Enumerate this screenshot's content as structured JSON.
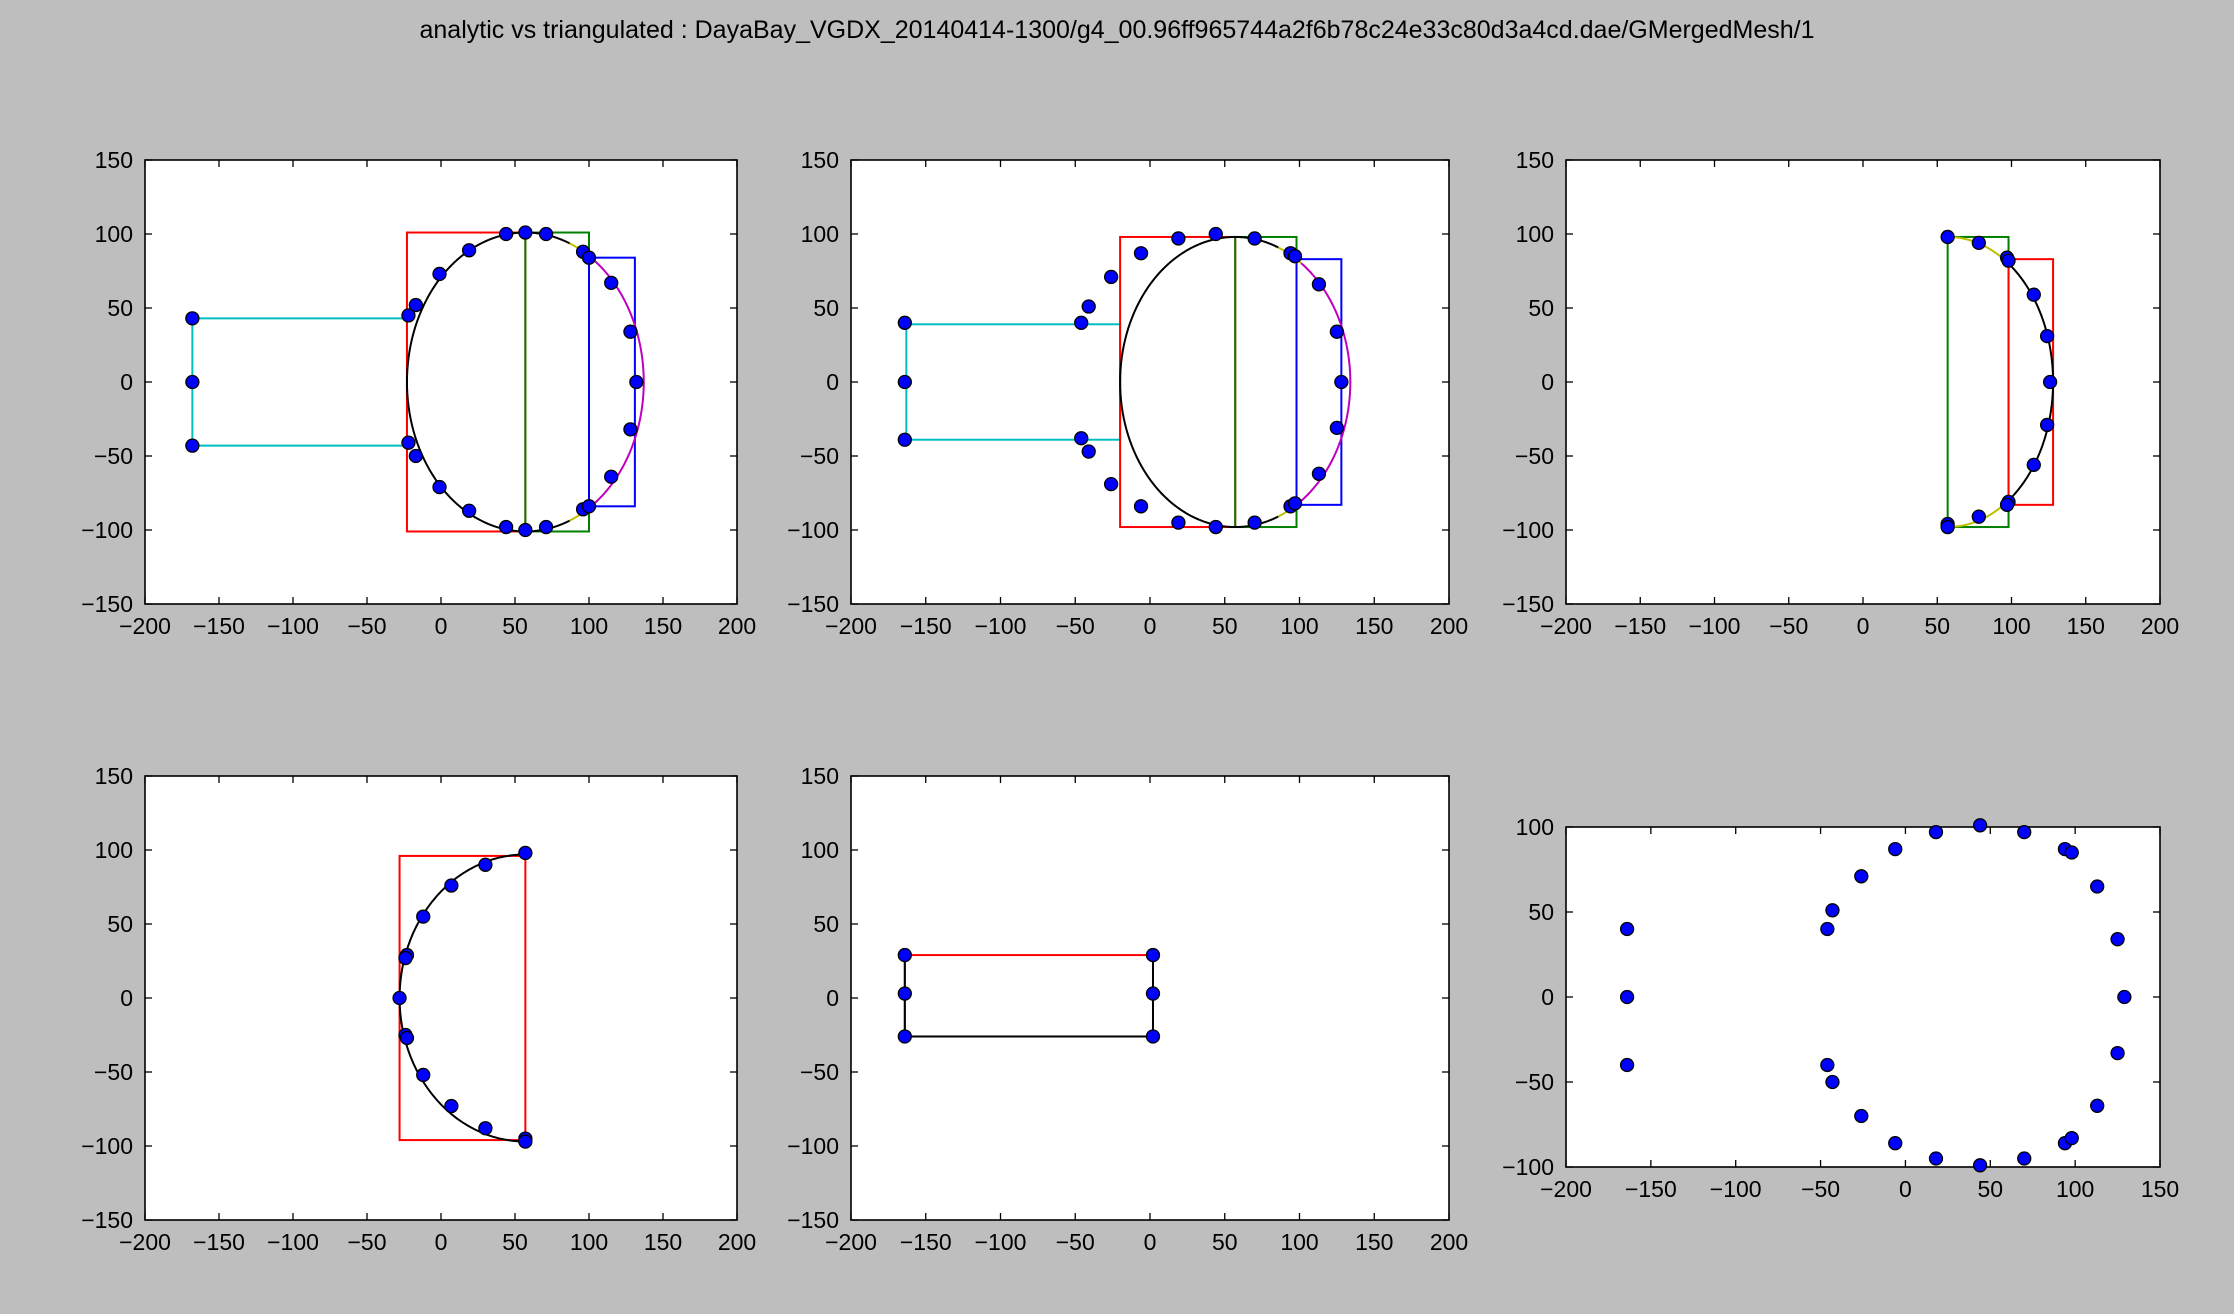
{
  "figure": {
    "title": "analytic vs triangulated : DayaBay_VGDX_20140414-1300/g4_00.96ff965744a2f6b78c24e33c80d3a4cd.dae/GMergedMesh/1"
  },
  "chart_data": [
    {
      "type": "scatter",
      "panel": "top-left",
      "xlim": [
        -200,
        200
      ],
      "ylim": [
        -150,
        150
      ],
      "xticks": [
        -200,
        -150,
        -100,
        -50,
        0,
        50,
        100,
        150,
        200
      ],
      "yticks": [
        -150,
        -100,
        -50,
        0,
        50,
        100,
        150
      ],
      "grid": false,
      "rects": [
        {
          "x0": -168,
          "y0": -43,
          "x1": -23,
          "y1": 43,
          "color": "#00bfbf"
        },
        {
          "x0": -23,
          "y0": -101,
          "x1": 57,
          "y1": 101,
          "color": "#ff0000"
        },
        {
          "x0": 57,
          "y0": -101,
          "x1": 100,
          "y1": 101,
          "color": "#008000"
        },
        {
          "x0": 100,
          "y0": -84,
          "x1": 131,
          "y1": 84,
          "color": "#0000ff"
        }
      ],
      "arcs": [
        {
          "cx": 57,
          "cy": 0,
          "r": 80,
          "ry": 101,
          "from": 108,
          "to": 252,
          "color": "#000000"
        },
        {
          "cx": 57,
          "cy": 0,
          "r": 80,
          "ry": 101,
          "from": -108,
          "to": -68,
          "color": "#000000"
        },
        {
          "cx": 57,
          "cy": 0,
          "r": 80,
          "ry": 101,
          "from": 68,
          "to": 108,
          "color": "#000000"
        },
        {
          "cx": 57,
          "cy": 0,
          "r": 80,
          "ry": 101,
          "from": 55,
          "to": 68,
          "color": "#bfbf00"
        },
        {
          "cx": 57,
          "cy": 0,
          "r": 80,
          "ry": 101,
          "from": -68,
          "to": -55,
          "color": "#bfbf00"
        },
        {
          "cx": 57,
          "cy": 0,
          "r": 80,
          "ry": 101,
          "from": -55,
          "to": 55,
          "color": "#bf00bf"
        }
      ],
      "points": [
        [
          -168,
          43
        ],
        [
          -168,
          0
        ],
        [
          -168,
          -43
        ],
        [
          -22,
          45
        ],
        [
          -17,
          52
        ],
        [
          -1,
          73
        ],
        [
          19,
          89
        ],
        [
          44,
          100
        ],
        [
          57,
          101
        ],
        [
          71,
          100
        ],
        [
          96,
          88
        ],
        [
          100,
          84
        ],
        [
          115,
          67
        ],
        [
          128,
          34
        ],
        [
          132,
          0
        ],
        [
          -22,
          -41
        ],
        [
          -17,
          -50
        ],
        [
          -1,
          -71
        ],
        [
          19,
          -87
        ],
        [
          44,
          -98
        ],
        [
          57,
          -100
        ],
        [
          71,
          -98
        ],
        [
          96,
          -86
        ],
        [
          100,
          -84
        ],
        [
          115,
          -64
        ],
        [
          128,
          -32
        ]
      ]
    },
    {
      "type": "scatter",
      "panel": "top-middle",
      "xlim": [
        -200,
        200
      ],
      "ylim": [
        -150,
        150
      ],
      "xticks": [
        -200,
        -150,
        -100,
        -50,
        0,
        50,
        100,
        150,
        200
      ],
      "yticks": [
        -150,
        -100,
        -50,
        0,
        50,
        100,
        150
      ],
      "grid": false,
      "rects": [
        {
          "x0": -163,
          "y0": -39,
          "x1": -20,
          "y1": 39,
          "color": "#00bfbf"
        },
        {
          "x0": -20,
          "y0": -98,
          "x1": 57,
          "y1": 98,
          "color": "#ff0000"
        },
        {
          "x0": 57,
          "y0": -98,
          "x1": 98,
          "y1": 98,
          "color": "#008000"
        },
        {
          "x0": 98,
          "y0": -83,
          "x1": 128,
          "y1": 83,
          "color": "#0000ff"
        }
      ],
      "arcs": [
        {
          "cx": 57,
          "cy": 0,
          "r": 77,
          "ry": 98,
          "from": 108,
          "to": 252,
          "color": "#000000"
        },
        {
          "cx": 57,
          "cy": 0,
          "r": 77,
          "ry": 98,
          "from": -108,
          "to": -68,
          "color": "#000000"
        },
        {
          "cx": 57,
          "cy": 0,
          "r": 77,
          "ry": 98,
          "from": 68,
          "to": 108,
          "color": "#000000"
        },
        {
          "cx": 57,
          "cy": 0,
          "r": 77,
          "ry": 98,
          "from": 55,
          "to": 68,
          "color": "#bfbf00"
        },
        {
          "cx": 57,
          "cy": 0,
          "r": 77,
          "ry": 98,
          "from": -68,
          "to": -55,
          "color": "#bfbf00"
        },
        {
          "cx": 57,
          "cy": 0,
          "r": 77,
          "ry": 98,
          "from": -55,
          "to": 55,
          "color": "#bf00bf"
        }
      ],
      "points": [
        [
          -164,
          40
        ],
        [
          -164,
          0
        ],
        [
          -164,
          -39
        ],
        [
          -46,
          40
        ],
        [
          -41,
          51
        ],
        [
          -26,
          71
        ],
        [
          -6,
          87
        ],
        [
          19,
          97
        ],
        [
          44,
          100
        ],
        [
          70,
          97
        ],
        [
          94,
          87
        ],
        [
          97,
          85
        ],
        [
          113,
          66
        ],
        [
          125,
          34
        ],
        [
          128,
          0
        ],
        [
          -46,
          -38
        ],
        [
          -41,
          -47
        ],
        [
          -26,
          -69
        ],
        [
          -6,
          -84
        ],
        [
          19,
          -95
        ],
        [
          44,
          -98
        ],
        [
          70,
          -95
        ],
        [
          94,
          -84
        ],
        [
          97,
          -82
        ],
        [
          113,
          -62
        ],
        [
          125,
          -31
        ]
      ]
    },
    {
      "type": "scatter",
      "panel": "top-right",
      "xlim": [
        -200,
        200
      ],
      "ylim": [
        -150,
        150
      ],
      "xticks": [
        -200,
        -150,
        -100,
        -50,
        0,
        50,
        100,
        150,
        200
      ],
      "yticks": [
        -150,
        -100,
        -50,
        0,
        50,
        100,
        150
      ],
      "grid": false,
      "rects": [
        {
          "x0": 57,
          "y0": -98,
          "x1": 98,
          "y1": 98,
          "color": "#008000"
        },
        {
          "x0": 98,
          "y0": -83,
          "x1": 128,
          "y1": 83,
          "color": "#ff0000"
        }
      ],
      "arcs": [
        {
          "cx": 57,
          "cy": 0,
          "r": 71,
          "ry": 98,
          "from": 55,
          "to": 90,
          "color": "#bfbf00"
        },
        {
          "cx": 57,
          "cy": 0,
          "r": 71,
          "ry": 98,
          "from": -90,
          "to": -55,
          "color": "#bfbf00"
        },
        {
          "cx": 57,
          "cy": 0,
          "r": 71,
          "ry": 98,
          "from": -55,
          "to": 55,
          "color": "#000000"
        }
      ],
      "points": [
        [
          57,
          98
        ],
        [
          57,
          -96
        ],
        [
          57,
          -98
        ],
        [
          78,
          94
        ],
        [
          97,
          84
        ],
        [
          98,
          82
        ],
        [
          115,
          59
        ],
        [
          124,
          31
        ],
        [
          126,
          0
        ],
        [
          124,
          -29
        ],
        [
          115,
          -56
        ],
        [
          98,
          -81
        ],
        [
          97,
          -83
        ],
        [
          78,
          -91
        ]
      ]
    },
    {
      "type": "scatter",
      "panel": "bottom-left",
      "xlim": [
        -200,
        200
      ],
      "ylim": [
        -150,
        150
      ],
      "xticks": [
        -200,
        -150,
        -100,
        -50,
        0,
        50,
        100,
        150,
        200
      ],
      "yticks": [
        -150,
        -100,
        -50,
        0,
        50,
        100,
        150
      ],
      "grid": false,
      "rects": [
        {
          "x0": -28,
          "y0": -96,
          "x1": 57,
          "y1": 96,
          "color": "#ff0000"
        }
      ],
      "arcs": [
        {
          "cx": 57,
          "cy": 0,
          "r": 85,
          "ry": 97,
          "from": 90,
          "to": 270,
          "color": "#000000"
        }
      ],
      "points": [
        [
          57,
          98
        ],
        [
          30,
          90
        ],
        [
          7,
          76
        ],
        [
          -12,
          55
        ],
        [
          -23,
          29
        ],
        [
          -24,
          27
        ],
        [
          -28,
          0
        ],
        [
          -24,
          -25
        ],
        [
          -23,
          -27
        ],
        [
          -12,
          -52
        ],
        [
          7,
          -73
        ],
        [
          30,
          -88
        ],
        [
          57,
          -95
        ],
        [
          57,
          -97
        ]
      ]
    },
    {
      "type": "scatter",
      "panel": "bottom-middle",
      "xlim": [
        -200,
        200
      ],
      "ylim": [
        -150,
        150
      ],
      "xticks": [
        -200,
        -150,
        -100,
        -50,
        0,
        50,
        100,
        150,
        200
      ],
      "yticks": [
        -150,
        -100,
        -50,
        0,
        50,
        100,
        150
      ],
      "grid": false,
      "rects": [
        {
          "x0": -164,
          "y0": -26,
          "x1": 2,
          "y1": 29,
          "color": "#ff0000"
        }
      ],
      "segments": [
        {
          "x0": -164,
          "y0": -26,
          "x1": 2,
          "y1": -26,
          "color": "#000000"
        },
        {
          "x0": -164,
          "y0": 29,
          "x1": -164,
          "y1": -26,
          "color": "#000000"
        },
        {
          "x0": 2,
          "y0": 29,
          "x1": 2,
          "y1": -26,
          "color": "#000000"
        }
      ],
      "points": [
        [
          -164,
          29
        ],
        [
          -164,
          3
        ],
        [
          -164,
          -26
        ],
        [
          2,
          29
        ],
        [
          2,
          3
        ],
        [
          2,
          -26
        ]
      ]
    },
    {
      "type": "scatter",
      "panel": "bottom-right",
      "xlim": [
        -200,
        150
      ],
      "ylim": [
        -100,
        100
      ],
      "xticks": [
        -200,
        -150,
        -100,
        -50,
        0,
        50,
        100,
        150
      ],
      "yticks": [
        -100,
        -50,
        0,
        50,
        100
      ],
      "grid": false,
      "points": [
        [
          -164,
          40
        ],
        [
          -164,
          0
        ],
        [
          -164,
          -40
        ],
        [
          -46,
          40
        ],
        [
          -43,
          51
        ],
        [
          -26,
          71
        ],
        [
          -6,
          87
        ],
        [
          18,
          97
        ],
        [
          44,
          101
        ],
        [
          70,
          97
        ],
        [
          94,
          87
        ],
        [
          98,
          85
        ],
        [
          113,
          65
        ],
        [
          125,
          34
        ],
        [
          129,
          0
        ],
        [
          -46,
          -40
        ],
        [
          -43,
          -50
        ],
        [
          -26,
          -70
        ],
        [
          -6,
          -86
        ],
        [
          18,
          -95
        ],
        [
          44,
          -99
        ],
        [
          70,
          -95
        ],
        [
          94,
          -86
        ],
        [
          98,
          -83
        ],
        [
          113,
          -64
        ],
        [
          125,
          -33
        ]
      ]
    }
  ]
}
